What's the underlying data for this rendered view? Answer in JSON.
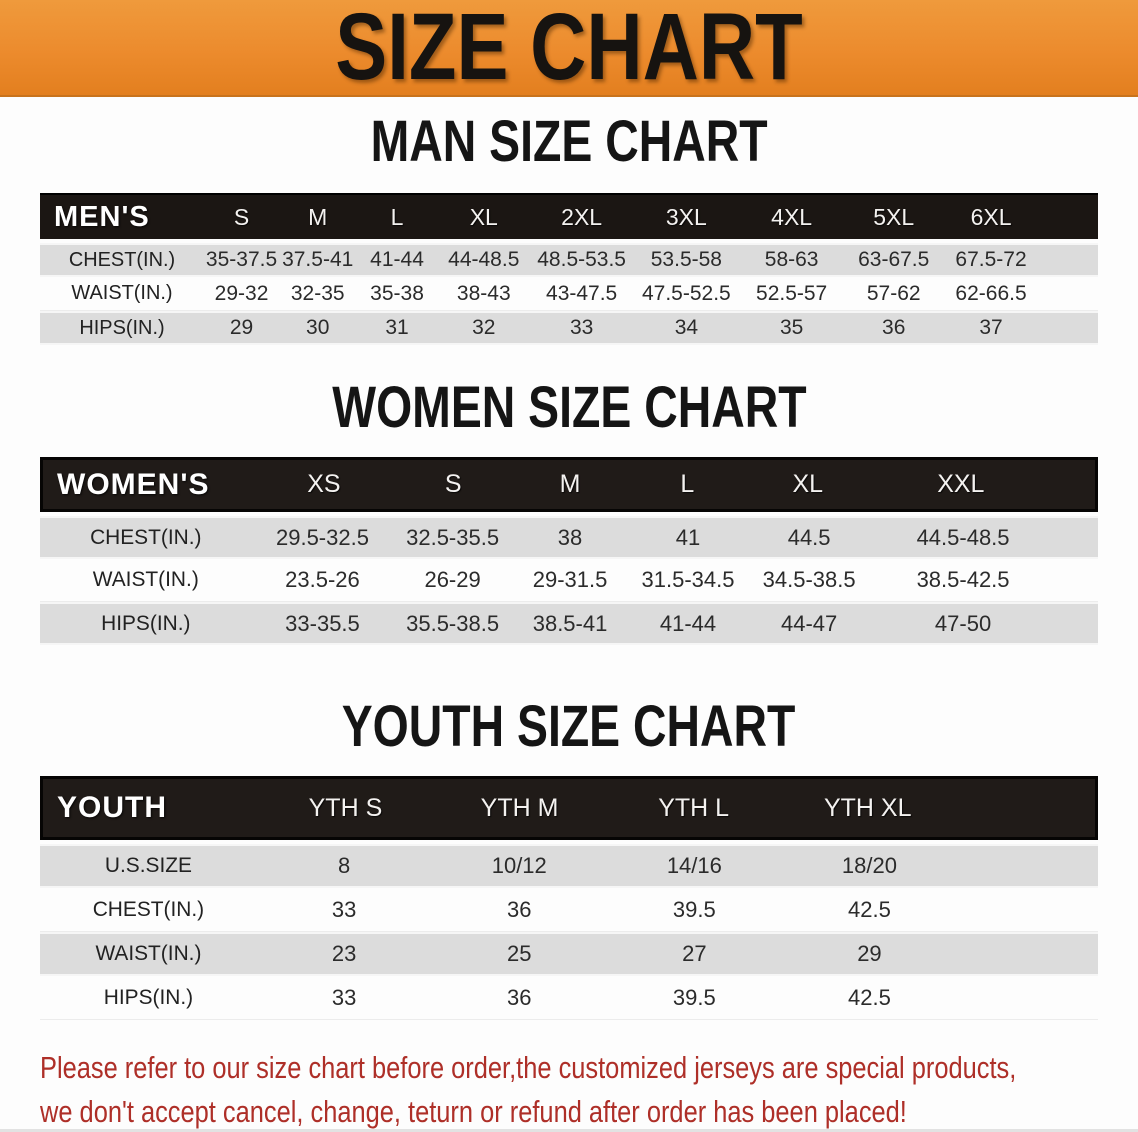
{
  "banner": {
    "title": "SIZE CHART"
  },
  "colors": {
    "banner_orange": "#ec8b2d",
    "header_black": "#1b1613",
    "row_gray": "#dcdcdc",
    "footer_red": "#ae2f28"
  },
  "sections": {
    "men": {
      "heading": "MAN SIZE CHART",
      "table": {
        "label": "MEN'S",
        "sizes": [
          "S",
          "M",
          "L",
          "XL",
          "2XL",
          "3XL",
          "4XL",
          "5XL",
          "6XL"
        ],
        "rows": [
          {
            "label": "CHEST(IN.)",
            "values": [
              "35-37.5",
              "37.5-41",
              "41-44",
              "44-48.5",
              "48.5-53.5",
              "53.5-58",
              "58-63",
              "63-67.5",
              "67.5-72"
            ]
          },
          {
            "label": "WAIST(IN.)",
            "values": [
              "29-32",
              "32-35",
              "35-38",
              "38-43",
              "43-47.5",
              "47.5-52.5",
              "52.5-57",
              "57-62",
              "62-66.5"
            ]
          },
          {
            "label": "HIPS(IN.)",
            "values": [
              "29",
              "30",
              "31",
              "32",
              "33",
              "34",
              "35",
              "36",
              "37"
            ]
          }
        ]
      }
    },
    "women": {
      "heading": "WOMEN SIZE CHART",
      "table": {
        "label": "WOMEN'S",
        "sizes": [
          "XS",
          "S",
          "M",
          "L",
          "XL",
          "XXL"
        ],
        "rows": [
          {
            "label": "CHEST(IN.)",
            "values": [
              "29.5-32.5",
              "32.5-35.5",
              "38",
              "41",
              "44.5",
              "44.5-48.5"
            ]
          },
          {
            "label": "WAIST(IN.)",
            "values": [
              "23.5-26",
              "26-29",
              "29-31.5",
              "31.5-34.5",
              "34.5-38.5",
              "38.5-42.5"
            ]
          },
          {
            "label": "HIPS(IN.)",
            "values": [
              "33-35.5",
              "35.5-38.5",
              "38.5-41",
              "41-44",
              "44-47",
              "47-50"
            ]
          }
        ]
      }
    },
    "youth": {
      "heading": "YOUTH SIZE CHART",
      "table": {
        "label": "YOUTH",
        "sizes": [
          "YTH S",
          "YTH M",
          "YTH L",
          "YTH XL"
        ],
        "rows": [
          {
            "label": "U.S.SIZE",
            "values": [
              "8",
              "10/12",
              "14/16",
              "18/20"
            ]
          },
          {
            "label": "CHEST(IN.)",
            "values": [
              "33",
              "36",
              "39.5",
              "42.5"
            ]
          },
          {
            "label": "WAIST(IN.)",
            "values": [
              "23",
              "25",
              "27",
              "29"
            ]
          },
          {
            "label": "HIPS(IN.)",
            "values": [
              "33",
              "36",
              "39.5",
              "42.5"
            ]
          }
        ]
      }
    }
  },
  "footer": {
    "line1": "Please refer to our size chart before order,the customized jerseys are special products,",
    "line2": "we don't accept cancel, change, teturn or refund after order has been placed!"
  }
}
